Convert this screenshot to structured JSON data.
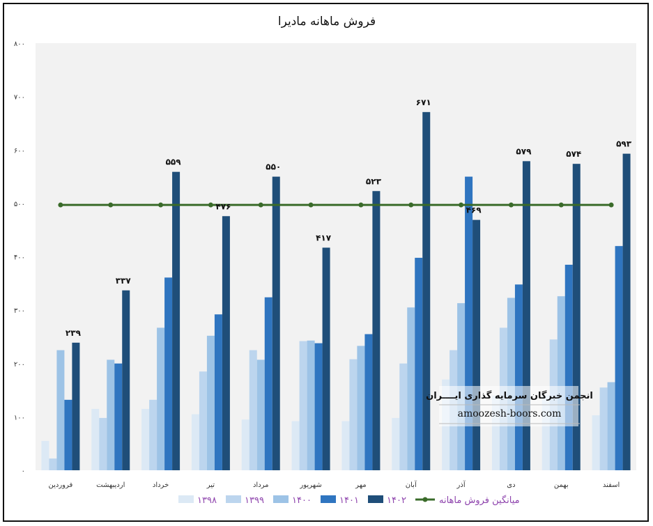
{
  "chart_data": {
    "type": "bar",
    "title": "فروش ماهانه مادیرا",
    "categories": [
      "فروردین",
      "اردیبهشت",
      "خرداد",
      "تیر",
      "مرداد",
      "شهریور",
      "مهر",
      "آبان",
      "آذر",
      "دی",
      "بهمن",
      "اسفند"
    ],
    "series": [
      {
        "name": "۱۳۹۸",
        "color": "#dce9f5",
        "values": [
          55,
          115,
          115,
          105,
          95,
          92,
          92,
          98,
          170,
          140,
          140,
          103
        ]
      },
      {
        "name": "۱۳۹۹",
        "color": "#bcd5ee",
        "values": [
          22,
          98,
          132,
          185,
          225,
          242,
          208,
          200,
          225,
          267,
          245,
          155
        ]
      },
      {
        "name": "۱۴۰۰",
        "color": "#9dc3e6",
        "values": [
          225,
          207,
          267,
          252,
          207,
          243,
          233,
          305,
          313,
          323,
          326,
          165
        ]
      },
      {
        "name": "۱۴۰۱",
        "color": "#2f75c0",
        "values": [
          132,
          200,
          361,
          292,
          324,
          238,
          255,
          398,
          550,
          348,
          385,
          420
        ]
      },
      {
        "name": "۱۴۰۲",
        "color": "#1f4e79",
        "values": [
          239,
          337,
          559,
          476,
          550,
          417,
          523,
          671,
          469,
          579,
          574,
          593
        ]
      }
    ],
    "data_labels": [
      "۲۳۹",
      "۳۳۷",
      "۵۵۹",
      "۴۷۶",
      "۵۵۰",
      "۴۱۷",
      "۵۲۳",
      "۶۷۱",
      "۴۶۹",
      "۵۷۹",
      "۵۷۴",
      "۵۹۳"
    ],
    "average_line": {
      "name": "میانگین فروش ماهانه",
      "color": "#3a6b2a",
      "value": 497
    },
    "ylim": [
      0,
      800
    ],
    "yticks": [
      0,
      100,
      200,
      300,
      400,
      500,
      600,
      700,
      800
    ],
    "ytick_labels": [
      "۰",
      "۱۰۰",
      "۲۰۰",
      "۳۰۰",
      "۴۰۰",
      "۵۰۰",
      "۶۰۰",
      "۷۰۰",
      "۸۰۰"
    ],
    "grid": false,
    "legend_position": "bottom"
  },
  "watermark": {
    "title": "انجمن خبرگان سرمایه گذاری ایــــران",
    "url": "amoozesh-boors.com"
  }
}
